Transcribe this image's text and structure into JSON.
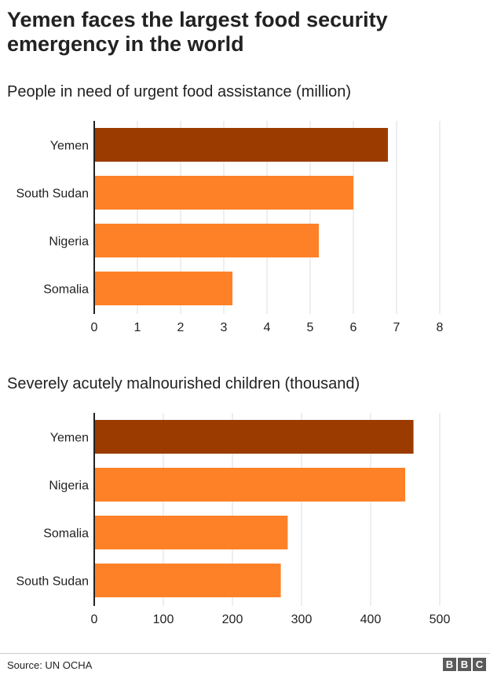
{
  "title": "Yemen faces the largest food security emergency in the world",
  "colors": {
    "highlight": "#9b3b00",
    "bar": "#fe8127",
    "grid": "#dddddd",
    "axis": "#222222"
  },
  "source": "Source:  UN OCHA",
  "logo": [
    "B",
    "B",
    "C"
  ],
  "chart_data": [
    {
      "type": "bar",
      "orientation": "horizontal",
      "title": "People in need of urgent food assistance (million)",
      "categories": [
        "Yemen",
        "South Sudan",
        "Nigeria",
        "Somalia"
      ],
      "values": [
        6.8,
        6.0,
        5.2,
        3.2
      ],
      "highlight": "Yemen",
      "xlim": [
        0,
        8
      ],
      "xticks": [
        "0",
        "1",
        "2",
        "3",
        "4",
        "5",
        "6",
        "7",
        "8"
      ],
      "tick_values": [
        0,
        1,
        2,
        3,
        4,
        5,
        6,
        7,
        8
      ],
      "grid": true
    },
    {
      "type": "bar",
      "orientation": "horizontal",
      "title": "Severely acutely malnourished children (thousand)",
      "categories": [
        "Yemen",
        "Nigeria",
        "Somalia",
        "South Sudan"
      ],
      "values": [
        462,
        450,
        280,
        270
      ],
      "highlight": "Yemen",
      "xlim": [
        0,
        500
      ],
      "xticks": [
        "0",
        "100",
        "200",
        "300",
        "400",
        "500"
      ],
      "tick_values": [
        0,
        100,
        200,
        300,
        400,
        500
      ],
      "grid": true
    }
  ]
}
